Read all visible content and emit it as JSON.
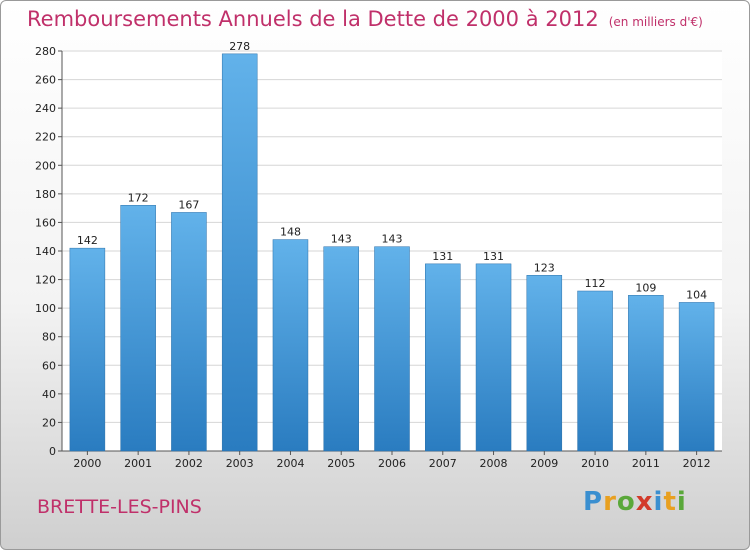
{
  "chart_data": {
    "type": "bar",
    "title": "Remboursements Annuels de la Dette de 2000 à 2012",
    "subtitle": "(en milliers d'€)",
    "categories": [
      "2000",
      "2001",
      "2002",
      "2003",
      "2004",
      "2005",
      "2006",
      "2007",
      "2008",
      "2009",
      "2010",
      "2011",
      "2012"
    ],
    "values": [
      142,
      172,
      167,
      278,
      148,
      143,
      143,
      131,
      131,
      123,
      112,
      109,
      104
    ],
    "ylim": [
      0,
      280
    ],
    "yticks": [
      0,
      20,
      40,
      60,
      80,
      100,
      120,
      140,
      160,
      180,
      200,
      220,
      240,
      260,
      280
    ],
    "grid": true,
    "bar_color": "#3d8fd6"
  },
  "commune": "BRETTE-LES-PINS",
  "logo": {
    "letters": [
      "P",
      "r",
      "o",
      "x",
      "i",
      "t",
      "i"
    ],
    "colors": [
      "#3a8fd0",
      "#e8a020",
      "#5aa83a",
      "#d23a2a",
      "#3a8fd0",
      "#e8a020",
      "#5aa83a"
    ]
  }
}
